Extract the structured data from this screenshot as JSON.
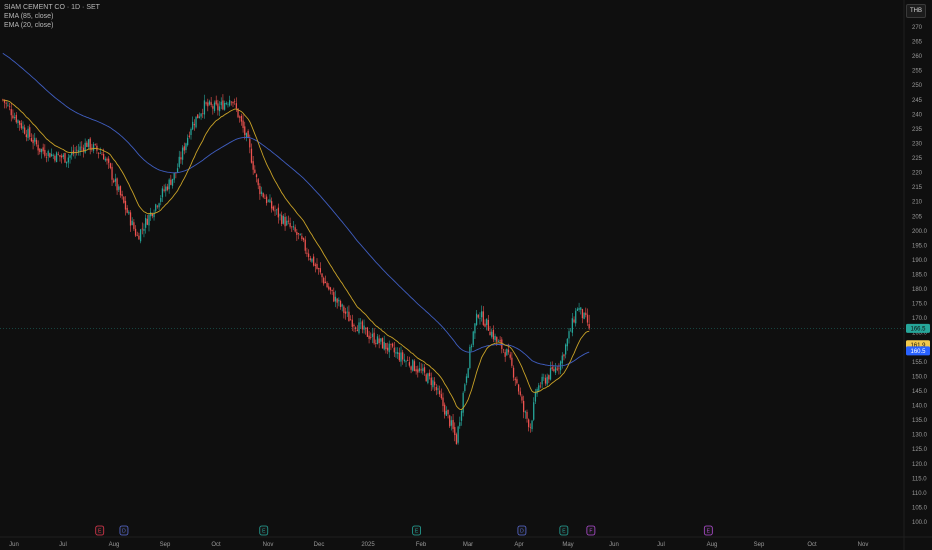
{
  "chart_data": {
    "type": "candlestick",
    "title": "SIAM CEMENT CO · 1D · SET",
    "currency": "THB",
    "indicators": [
      {
        "label": "EMA (85, close)",
        "color": "#3f5dbf"
      },
      {
        "label": "EMA (20, close)",
        "color": "#c9a227"
      }
    ],
    "y_ticks": [
      "270",
      "265",
      "260",
      "255",
      "250",
      "245",
      "240",
      "235",
      "230",
      "225",
      "220",
      "215",
      "210",
      "205",
      "200.0",
      "195.0",
      "190.0",
      "185.0",
      "180.0",
      "175.0",
      "170.0",
      "165.0",
      "160.0",
      "155.0",
      "150.0",
      "145.0",
      "140.0",
      "135.0",
      "130.0",
      "125.0",
      "120.0",
      "115.0",
      "110.0",
      "105.0",
      "100.0"
    ],
    "ylim": [
      100,
      272
    ],
    "x_ticks": [
      "Jun",
      "Jul",
      "Aug",
      "Sep",
      "Oct",
      "Nov",
      "Dec",
      "2025",
      "Feb",
      "Mar",
      "Apr",
      "May",
      "Jun",
      "Jul",
      "Aug",
      "Sep",
      "Oct",
      "Nov"
    ],
    "price_tags": [
      {
        "label": "166.5",
        "value": 166.5,
        "bg": "#26a69a",
        "fg": "#0f0f0f"
      },
      {
        "label": "161.9",
        "value": 161.9,
        "bg": "#f2c94c",
        "fg": "#0f0f0f"
      },
      {
        "label": "160.5",
        "value": 160.5,
        "bg": "#2962ff",
        "fg": "#ffffff"
      }
    ],
    "last_price": 166.5,
    "path_points": [
      [
        0,
        245
      ],
      [
        10,
        237
      ],
      [
        22,
        228
      ],
      [
        30,
        226
      ],
      [
        38,
        225
      ],
      [
        50,
        230
      ],
      [
        60,
        226
      ],
      [
        70,
        212
      ],
      [
        80,
        198
      ],
      [
        88,
        206
      ],
      [
        95,
        213
      ],
      [
        103,
        220
      ],
      [
        112,
        236
      ],
      [
        120,
        243
      ],
      [
        128,
        242
      ],
      [
        136,
        246
      ],
      [
        140,
        240
      ],
      [
        146,
        230
      ],
      [
        152,
        215
      ],
      [
        160,
        208
      ],
      [
        168,
        203
      ],
      [
        176,
        198
      ],
      [
        186,
        188
      ],
      [
        196,
        178
      ],
      [
        206,
        170
      ],
      [
        216,
        165
      ],
      [
        226,
        161
      ],
      [
        236,
        157
      ],
      [
        246,
        153
      ],
      [
        256,
        148
      ],
      [
        262,
        140
      ],
      [
        267,
        133
      ],
      [
        270,
        128
      ],
      [
        275,
        148
      ],
      [
        280,
        165
      ],
      [
        283,
        172
      ],
      [
        288,
        168
      ],
      [
        294,
        162
      ],
      [
        300,
        158
      ],
      [
        306,
        148
      ],
      [
        310,
        138
      ],
      [
        314,
        133
      ],
      [
        318,
        146
      ],
      [
        326,
        151
      ],
      [
        332,
        155
      ],
      [
        338,
        166
      ],
      [
        342,
        174
      ],
      [
        346,
        170
      ],
      [
        350,
        167
      ]
    ],
    "events": [
      {
        "label": "E",
        "x_frac": 0.107,
        "color": "#e53950"
      },
      {
        "label": "D",
        "x_frac": 0.133,
        "color": "#5b6dd6"
      },
      {
        "label": "E",
        "x_frac": 0.283,
        "color": "#26a69a"
      },
      {
        "label": "E",
        "x_frac": 0.447,
        "color": "#26a69a"
      },
      {
        "label": "D",
        "x_frac": 0.56,
        "color": "#5b6dd6"
      },
      {
        "label": "E",
        "x_frac": 0.605,
        "color": "#26a69a"
      },
      {
        "label": "F",
        "x_frac": 0.634,
        "color": "#b44fd6"
      },
      {
        "label": "E",
        "x_frac": 0.76,
        "color": "#b44fd6"
      }
    ]
  }
}
